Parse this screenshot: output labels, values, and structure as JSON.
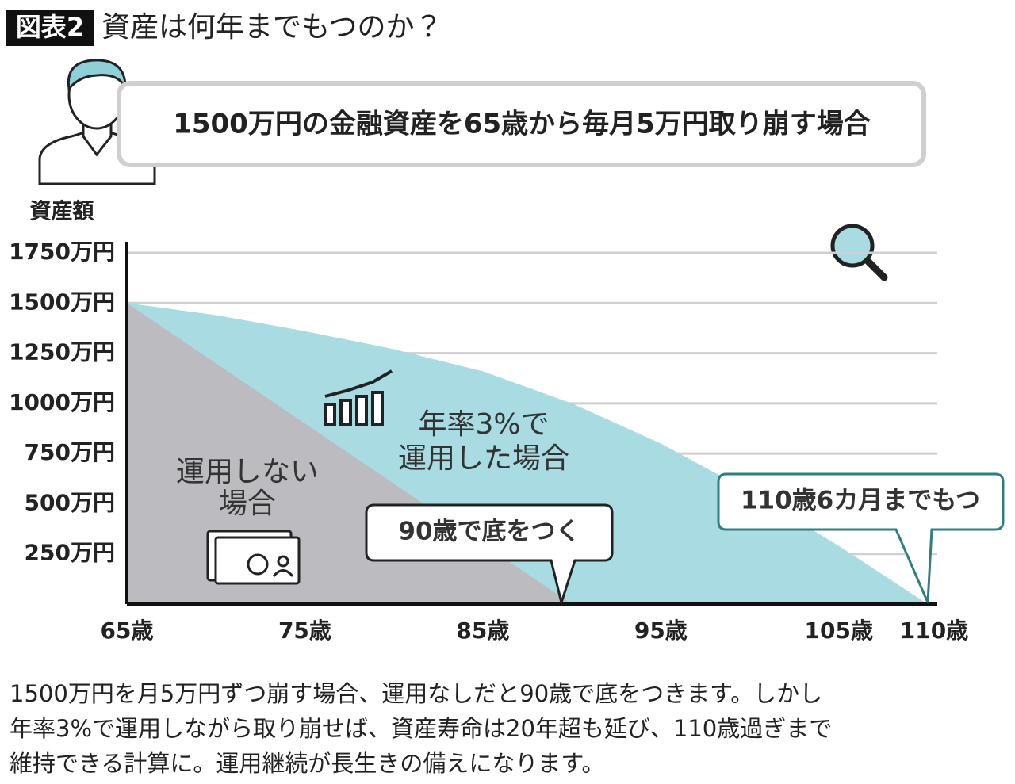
{
  "header": {
    "badge": "図表2",
    "title": "資産は何年までもつのか？"
  },
  "chart_data": {
    "type": "area",
    "subtitle": "1500万円の金融資産を65歳から毎月5万円取り崩す場合",
    "ylabel": "資産額",
    "x": [
      65,
      70,
      75,
      80,
      85,
      90,
      95,
      100,
      105,
      110
    ],
    "series": [
      {
        "color": "#bcbcc0",
        "values": [
          1500,
          1200,
          900,
          600,
          300,
          0,
          null,
          null,
          null,
          null
        ]
      },
      {
        "color": "#a8dce2",
        "values": [
          1500,
          1440,
          1360,
          1270,
          1160,
          1000,
          800,
          560,
          290,
          0
        ]
      }
    ],
    "xlim": [
      65,
      110
    ],
    "xticks": [
      {
        "value": 65,
        "label": "65歳"
      },
      {
        "value": 75,
        "label": "75歳"
      },
      {
        "value": 85,
        "label": "85歳"
      },
      {
        "value": 95,
        "label": "95歳"
      },
      {
        "value": 105,
        "label": "105歳"
      },
      {
        "value": 110,
        "label": "110歳"
      }
    ],
    "ylim": [
      0,
      1750
    ],
    "yticks": [
      {
        "value": 250,
        "label": "250万円"
      },
      {
        "value": 500,
        "label": "500万円"
      },
      {
        "value": 750,
        "label": "750万円"
      },
      {
        "value": 1000,
        "label": "1000万円"
      },
      {
        "value": 1250,
        "label": "1250万円"
      },
      {
        "value": 1500,
        "label": "1500万円"
      },
      {
        "value": 1750,
        "label": "1750万円"
      }
    ],
    "grid": true,
    "annotations": [
      {
        "lines": [
          "年率3%で",
          "運用した場合"
        ]
      },
      {
        "lines": [
          "運用しない",
          "場合"
        ]
      },
      {
        "lines": [
          "90歳で底をつく"
        ]
      },
      {
        "lines": [
          "110歳6カ月までもつ"
        ]
      }
    ]
  },
  "caption": [
    "1500万円を月5万円ずつ崩す場合、運用なしだと90歳で底をつきます。しかし",
    "年率3%で運用しながら取り崩せば、資産寿命は20年超も延び、110歳過ぎまで",
    "維持できる計算に。運用継続が長生きの備えになります。"
  ]
}
